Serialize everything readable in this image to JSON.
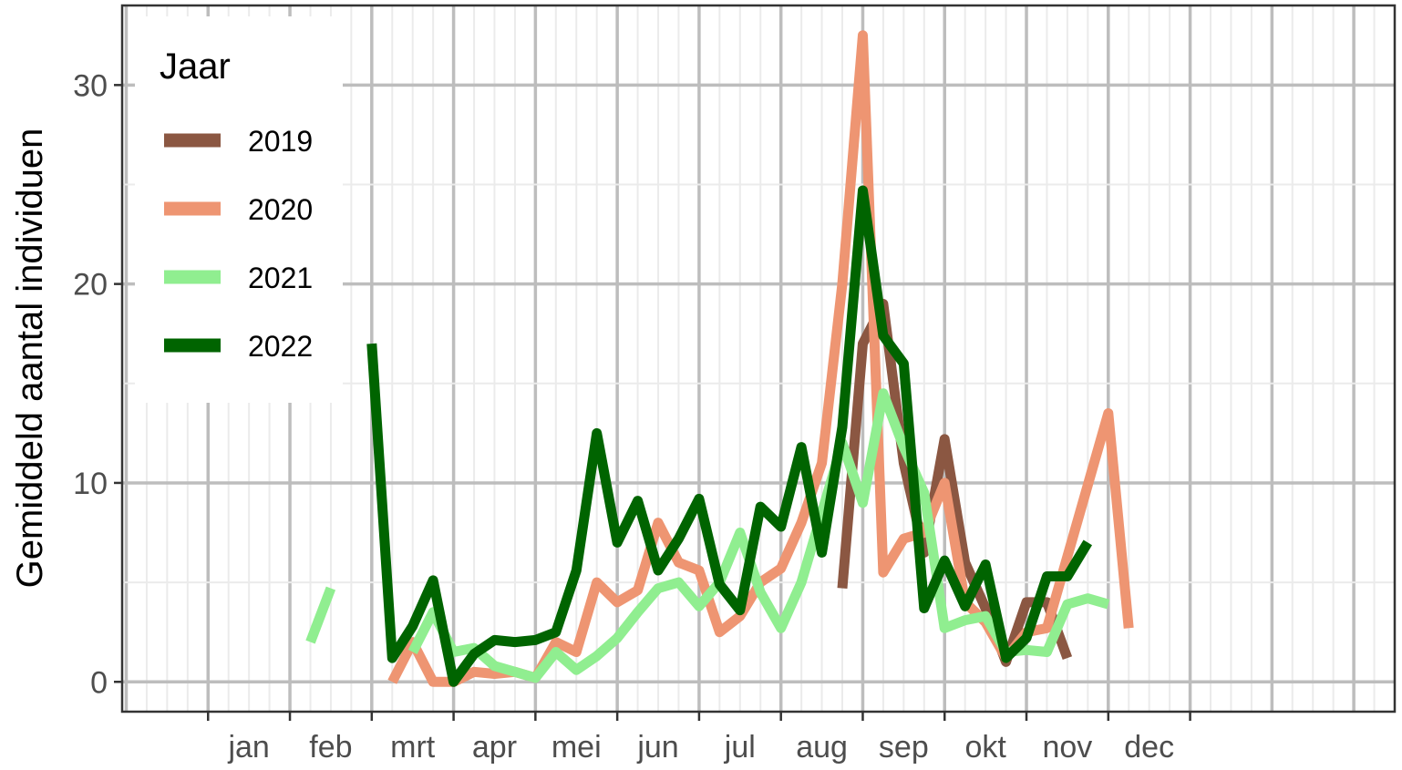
{
  "chart_data": {
    "type": "line",
    "title": "",
    "xlabel": "",
    "ylabel": "Gemiddeld aantal individuen",
    "ylim": [
      -1.5,
      34
    ],
    "y_ticks": [
      0,
      10,
      20,
      30
    ],
    "y_tick_labels": [
      "0",
      "10",
      "20",
      "30"
    ],
    "x_unit": "week",
    "xlim": [
      -4.2,
      58
    ],
    "months": [
      "jan",
      "feb",
      "mrt",
      "apr",
      "mei",
      "jun",
      "jul",
      "aug",
      "sep",
      "okt",
      "nov",
      "dec"
    ],
    "grid": true,
    "legend": {
      "title": "Jaar",
      "position": "top-left"
    },
    "series": [
      {
        "name": "2019",
        "color": "#8B5742",
        "points": [
          [
            31,
            4.7
          ],
          [
            32,
            17
          ],
          [
            33,
            19
          ],
          [
            34,
            11
          ],
          [
            35,
            6.5
          ],
          [
            36,
            12.2
          ],
          [
            37,
            6
          ],
          [
            38,
            3.7
          ],
          [
            39,
            1.0
          ],
          [
            40,
            4.0
          ],
          [
            41,
            4.0
          ],
          [
            42,
            1.2
          ]
        ]
      },
      {
        "name": "2020",
        "color": "#EE9572",
        "points": [
          [
            9,
            0
          ],
          [
            10,
            2
          ],
          [
            11,
            0
          ],
          [
            12,
            0
          ],
          [
            13,
            0.5
          ],
          [
            14,
            0.4
          ],
          [
            15,
            0.5
          ],
          [
            16,
            0.2
          ],
          [
            17,
            2
          ],
          [
            18,
            1.5
          ],
          [
            19,
            5
          ],
          [
            20,
            4
          ],
          [
            21,
            4.6
          ],
          [
            22,
            8
          ],
          [
            23,
            6
          ],
          [
            24,
            5.6
          ],
          [
            25,
            2.5
          ],
          [
            26,
            3.3
          ],
          [
            27,
            5
          ],
          [
            28,
            5.7
          ],
          [
            29,
            8
          ],
          [
            30,
            11
          ],
          [
            31,
            20
          ],
          [
            32,
            32.5
          ],
          [
            33,
            5.5
          ],
          [
            34,
            7.2
          ],
          [
            35,
            7.5
          ],
          [
            36,
            10
          ],
          [
            37,
            4
          ],
          [
            38,
            3
          ],
          [
            39,
            1.2
          ],
          [
            40,
            2.5
          ],
          [
            41,
            2.7
          ],
          [
            44,
            13.5
          ],
          [
            45,
            2.7
          ]
        ]
      },
      {
        "name": "2021",
        "color": "#90EE90",
        "points": [
          [
            [
              5,
              2
            ],
            [
              6,
              4.7
            ]
          ],
          [
            [
              10,
              1.5
            ],
            [
              11,
              3.5
            ],
            [
              12,
              1.5
            ],
            [
              13,
              1.7
            ],
            [
              14,
              0.8
            ],
            [
              15,
              0.5
            ],
            [
              16,
              0.2
            ],
            [
              17,
              1.5
            ],
            [
              18,
              0.6
            ],
            [
              19,
              1.3
            ],
            [
              20,
              2.2
            ],
            [
              21,
              3.5
            ],
            [
              22,
              4.7
            ],
            [
              23,
              5
            ],
            [
              24,
              3.8
            ],
            [
              25,
              5
            ],
            [
              26,
              7.5
            ],
            [
              27,
              4.5
            ],
            [
              28,
              2.7
            ],
            [
              29,
              5
            ],
            [
              30,
              8.5
            ],
            [
              31,
              12
            ],
            [
              32,
              9
            ],
            [
              33,
              14.5
            ],
            [
              34,
              11.8
            ],
            [
              35,
              9.5
            ],
            [
              36,
              2.7
            ],
            [
              37,
              3.1
            ],
            [
              38,
              3.3
            ],
            [
              39,
              1.5
            ],
            [
              40,
              1.6
            ],
            [
              41,
              1.5
            ],
            [
              42,
              3.9
            ],
            [
              43,
              4.2
            ],
            [
              44,
              3.9
            ]
          ]
        ]
      },
      {
        "name": "2022",
        "color": "#006400",
        "points": [
          [
            8,
            17
          ],
          [
            9,
            1.2
          ],
          [
            10,
            2.8
          ],
          [
            11,
            5.1
          ],
          [
            12,
            0
          ],
          [
            13,
            1.4
          ],
          [
            14,
            2.1
          ],
          [
            15,
            2
          ],
          [
            16,
            2.1
          ],
          [
            17,
            2.5
          ],
          [
            18,
            5.6
          ],
          [
            19,
            12.5
          ],
          [
            20,
            7
          ],
          [
            21,
            9.1
          ],
          [
            22,
            5.6
          ],
          [
            23,
            7.2
          ],
          [
            24,
            9.2
          ],
          [
            25,
            4.9
          ],
          [
            26,
            3.6
          ],
          [
            27,
            8.8
          ],
          [
            28,
            7.8
          ],
          [
            29,
            11.8
          ],
          [
            30,
            6.5
          ],
          [
            31,
            12.8
          ],
          [
            32,
            24.7
          ],
          [
            33,
            17.4
          ],
          [
            34,
            16
          ],
          [
            35,
            3.7
          ],
          [
            36,
            6.1
          ],
          [
            37,
            3.8
          ],
          [
            38,
            5.9
          ],
          [
            39,
            1.2
          ],
          [
            40,
            2.2
          ],
          [
            41,
            5.3
          ],
          [
            42,
            5.3
          ],
          [
            43,
            7
          ]
        ]
      }
    ]
  }
}
